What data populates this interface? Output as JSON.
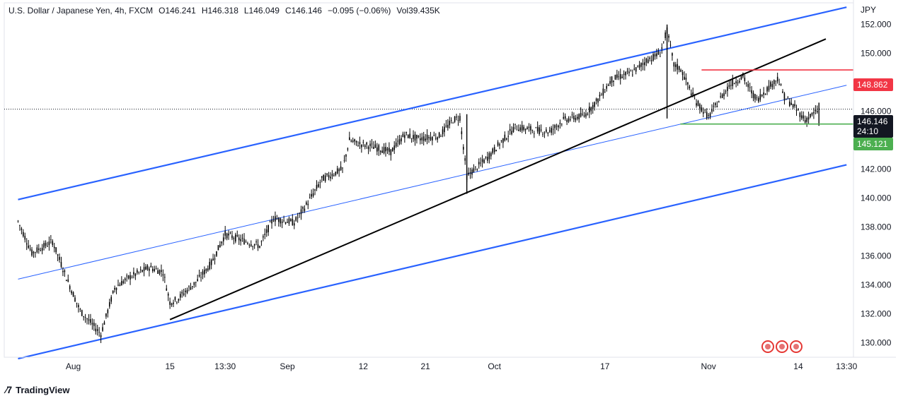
{
  "legend": {
    "symbol": "U.S. Dollar / Japanese Yen, 4h, FXCM",
    "open": "O146.241",
    "high": "H146.318",
    "low": "L146.049",
    "close": "C146.146",
    "change": "−0.095 (−0.06%)",
    "volume": "Vol39.435K"
  },
  "price_axis": {
    "unit": "JPY",
    "ticks": [
      "152.000",
      "150.000",
      "148.000",
      "146.000",
      "144.000",
      "142.000",
      "140.000",
      "138.000",
      "136.000",
      "134.000",
      "132.000",
      "130.000"
    ],
    "current_price": "146.146",
    "countdown": "24:10",
    "resistance_label": "148.862",
    "support_label": "145.121"
  },
  "time_axis": {
    "ticks": [
      "Aug",
      "15",
      "13:30",
      "Sep",
      "12",
      "21",
      "Oct",
      "17",
      "Nov",
      "14",
      "13:30"
    ]
  },
  "colors": {
    "channel": "#2962ff",
    "trendline": "#000000",
    "resistance": "#f23645",
    "support": "#4caf50",
    "candle": "#000000"
  },
  "branding": {
    "name": "TradingView"
  },
  "event_icons": [
    "us-flag-icon",
    "us-flag-icon",
    "record-icon"
  ],
  "chart_data": {
    "type": "candlestick",
    "instrument": "USD/JPY",
    "ylim": [
      129,
      153.5
    ],
    "y_ticks": [
      130,
      132,
      134,
      136,
      138,
      140,
      142,
      144,
      146,
      148,
      150,
      152
    ],
    "x_ticks": [
      "Aug",
      "15",
      "13:30",
      "Sep",
      "12",
      "21",
      "Oct",
      "17",
      "Nov",
      "14",
      "13:30"
    ],
    "price_path": [
      {
        "x": "2024-07-24",
        "y": 138.4
      },
      {
        "x": "2024-07-26",
        "y": 136.2
      },
      {
        "x": "2024-07-29",
        "y": 137.0
      },
      {
        "x": "2024-07-31",
        "y": 134.5
      },
      {
        "x": "2024-08-02",
        "y": 132.2
      },
      {
        "x": "2024-08-05",
        "y": 130.6
      },
      {
        "x": "2024-08-07",
        "y": 133.8
      },
      {
        "x": "2024-08-09",
        "y": 134.5
      },
      {
        "x": "2024-08-12",
        "y": 135.2
      },
      {
        "x": "2024-08-14",
        "y": 134.9
      },
      {
        "x": "2024-08-15",
        "y": 132.8
      },
      {
        "x": "2024-08-16",
        "y": 133.0
      },
      {
        "x": "2024-08-19",
        "y": 134.3
      },
      {
        "x": "2024-08-21",
        "y": 135.5
      },
      {
        "x": "2024-08-23",
        "y": 137.5
      },
      {
        "x": "2024-08-26",
        "y": 137.0
      },
      {
        "x": "2024-08-28",
        "y": 136.7
      },
      {
        "x": "2024-08-30",
        "y": 138.6
      },
      {
        "x": "2024-09-02",
        "y": 138.3
      },
      {
        "x": "2024-09-04",
        "y": 139.7
      },
      {
        "x": "2024-09-06",
        "y": 141.3
      },
      {
        "x": "2024-09-09",
        "y": 142.0
      },
      {
        "x": "2024-09-10",
        "y": 144.0
      },
      {
        "x": "2024-09-11",
        "y": 143.8
      },
      {
        "x": "2024-09-13",
        "y": 143.6
      },
      {
        "x": "2024-09-16",
        "y": 143.2
      },
      {
        "x": "2024-09-18",
        "y": 144.4
      },
      {
        "x": "2024-09-20",
        "y": 144.1
      },
      {
        "x": "2024-09-23",
        "y": 144.3
      },
      {
        "x": "2024-09-25",
        "y": 145.4
      },
      {
        "x": "2024-09-26",
        "y": 145.6
      },
      {
        "x": "2024-09-27",
        "y": 141.5
      },
      {
        "x": "2024-09-30",
        "y": 142.8
      },
      {
        "x": "2024-10-02",
        "y": 143.9
      },
      {
        "x": "2024-10-04",
        "y": 144.9
      },
      {
        "x": "2024-10-07",
        "y": 144.7
      },
      {
        "x": "2024-10-09",
        "y": 144.6
      },
      {
        "x": "2024-10-11",
        "y": 145.4
      },
      {
        "x": "2024-10-14",
        "y": 145.7
      },
      {
        "x": "2024-10-16",
        "y": 146.8
      },
      {
        "x": "2024-10-18",
        "y": 148.2
      },
      {
        "x": "2024-10-21",
        "y": 148.7
      },
      {
        "x": "2024-10-23",
        "y": 149.5
      },
      {
        "x": "2024-10-25",
        "y": 150.0
      },
      {
        "x": "2024-10-26",
        "y": 151.6
      },
      {
        "x": "2024-10-27",
        "y": 149.2
      },
      {
        "x": "2024-10-28",
        "y": 148.9
      },
      {
        "x": "2024-10-30",
        "y": 146.8
      },
      {
        "x": "2024-11-01",
        "y": 145.6
      },
      {
        "x": "2024-11-04",
        "y": 147.8
      },
      {
        "x": "2024-11-06",
        "y": 148.4
      },
      {
        "x": "2024-11-07",
        "y": 147.5
      },
      {
        "x": "2024-11-08",
        "y": 146.8
      },
      {
        "x": "2024-11-11",
        "y": 148.3
      },
      {
        "x": "2024-11-12",
        "y": 147.0
      },
      {
        "x": "2024-11-14",
        "y": 146.0
      },
      {
        "x": "2024-11-15",
        "y": 145.4
      },
      {
        "x": "2024-11-17",
        "y": 146.1
      }
    ],
    "drawings": {
      "channel_upper": [
        {
          "x": "2024-07-24",
          "y": 139.9
        },
        {
          "x": "2024-11-21",
          "y": 153.2
        }
      ],
      "channel_middle": [
        {
          "x": "2024-07-24",
          "y": 134.4
        },
        {
          "x": "2024-11-21",
          "y": 147.8
        }
      ],
      "channel_lower": [
        {
          "x": "2024-07-24",
          "y": 128.9
        },
        {
          "x": "2024-11-21",
          "y": 142.3
        }
      ],
      "trendline": [
        {
          "x": "2024-08-15",
          "y": 131.6
        },
        {
          "x": "2024-11-18",
          "y": 151.0
        }
      ],
      "resistance": {
        "y": 148.862,
        "from": "2024-10-31",
        "to": "2024-11-21"
      },
      "support": {
        "y": 145.121,
        "from": "2024-10-31",
        "to": "2024-11-21"
      }
    }
  }
}
